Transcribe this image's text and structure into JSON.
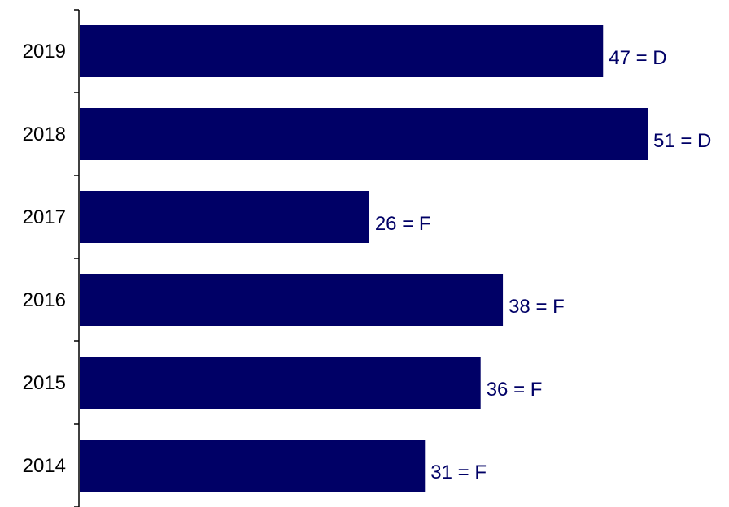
{
  "chart_data": {
    "type": "bar",
    "orientation": "horizontal",
    "categories": [
      "2019",
      "2018",
      "2017",
      "2016",
      "2015",
      "2014"
    ],
    "values": [
      47,
      51,
      26,
      38,
      36,
      31
    ],
    "data_labels": [
      "47 = D",
      "51 = D",
      "26 = F",
      "38 = F",
      "36 = F",
      "31 = F"
    ],
    "title": "",
    "xlabel": "",
    "ylabel": "",
    "xlim": [
      0,
      51
    ],
    "grid": false,
    "legend": "none",
    "colors": {
      "bar": "#000066",
      "data_label": "#000066",
      "axis": "#000000",
      "tick_label": "#000000"
    }
  }
}
